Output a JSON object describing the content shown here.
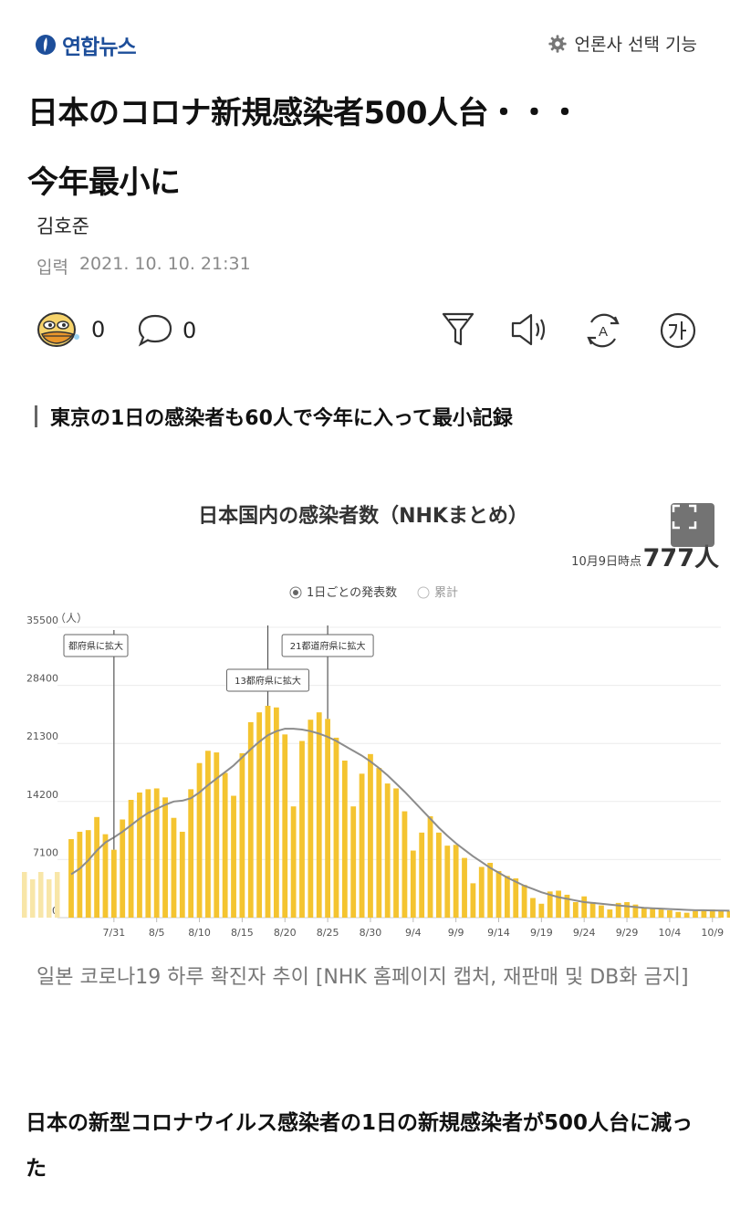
{
  "header": {
    "logo_text": "연합뉴스",
    "press_select_label": "언론사 선택 기능"
  },
  "article": {
    "title_line1": "日本のコロナ新規感染者500人台・・・",
    "title_line2": "今年最小に",
    "author": "김호준",
    "date_label": "입력",
    "date_value": "2021. 10. 10. 21:31",
    "reaction_count": "0",
    "comment_count": "0",
    "subheadline": "東京の1日の感染者も60人で今年に入って最小記録",
    "caption": "일본 코로나19 하루 확진자 추이 [NHK 홈페이지 캡처, 재판매 및 DB화 금지]",
    "lead_text": "日本の新型コロナウイルス感染者の1日の新規感染者が500人台に減った"
  },
  "toolbar_icons": [
    "emoji-icon",
    "comment-icon",
    "filter-icon",
    "speaker-icon",
    "font-cycle-icon",
    "font-size-icon"
  ],
  "colors": {
    "bar": "#f4c430",
    "line": "#8c8c8c",
    "logo_blue": "#1d4e9a"
  },
  "chart_data": {
    "type": "bar",
    "title": "日本国内の感染者数（NHKまとめ）",
    "as_of_label": "10月9日時点",
    "latest_value": "777人",
    "legend": [
      "1日ごとの発表数",
      "累計"
    ],
    "y_unit": "（人）",
    "ylim": [
      0,
      35500
    ],
    "yticks": [
      0,
      7100,
      14200,
      21300,
      28400,
      35500
    ],
    "xticks": [
      {
        "label": "7/31",
        "index": 5
      },
      {
        "label": "8/5",
        "index": 10
      },
      {
        "label": "8/10",
        "index": 15
      },
      {
        "label": "8/15",
        "index": 20
      },
      {
        "label": "8/20",
        "index": 25
      },
      {
        "label": "8/25",
        "index": 30
      },
      {
        "label": "8/30",
        "index": 35
      },
      {
        "label": "9/4",
        "index": 40
      },
      {
        "label": "9/9",
        "index": 45
      },
      {
        "label": "9/14",
        "index": 50
      },
      {
        "label": "9/19",
        "index": 55
      },
      {
        "label": "9/24",
        "index": 60
      },
      {
        "label": "9/29",
        "index": 65
      },
      {
        "label": "10/4",
        "index": 70
      },
      {
        "label": "10/9",
        "index": 75
      }
    ],
    "annotations": [
      {
        "label": "都府県に拡大",
        "index": 5
      },
      {
        "label": "13都府県に拡大",
        "index": 23
      },
      {
        "label": "21都道府県に拡大",
        "index": 30
      }
    ],
    "daily_values": [
      9600,
      10500,
      10700,
      12300,
      10200,
      8300,
      12000,
      14400,
      15300,
      15700,
      15800,
      14700,
      12200,
      10500,
      15700,
      18900,
      20400,
      20200,
      17700,
      14900,
      20100,
      23900,
      25100,
      25900,
      25700,
      22400,
      13600,
      21600,
      24200,
      25100,
      24300,
      22000,
      19200,
      13600,
      17600,
      20000,
      18300,
      16400,
      15800,
      13000,
      8200,
      10400,
      12400,
      10400,
      8800,
      8900,
      7300,
      4200,
      6200,
      6700,
      5700,
      5100,
      4800,
      4000,
      2400,
      1700,
      3200,
      3300,
      2800,
      1900,
      2600,
      1900,
      1500,
      1000,
      1800,
      1900,
      1600,
      1200,
      1100,
      1000,
      900,
      700,
      600,
      800,
      900,
      1000,
      800,
      777
    ],
    "avg_values": [
      5300,
      6000,
      7000,
      8200,
      9200,
      9800,
      10500,
      11300,
      12100,
      12800,
      13300,
      13800,
      14200,
      14300,
      14600,
      15300,
      16200,
      17000,
      17800,
      18600,
      19600,
      20600,
      21500,
      22300,
      22800,
      23100,
      23100,
      23000,
      22800,
      22500,
      22100,
      21600,
      21000,
      20400,
      19800,
      19100,
      18300,
      17400,
      16400,
      15400,
      14300,
      13200,
      12100,
      11000,
      10000,
      9100,
      8300,
      7500,
      6800,
      6100,
      5500,
      4900,
      4400,
      3900,
      3500,
      3100,
      2800,
      2500,
      2300,
      2100,
      1900,
      1800,
      1700,
      1600,
      1500,
      1400,
      1300,
      1200,
      1150,
      1100,
      1050,
      1000,
      950,
      900,
      900,
      880,
      860,
      850
    ]
  }
}
